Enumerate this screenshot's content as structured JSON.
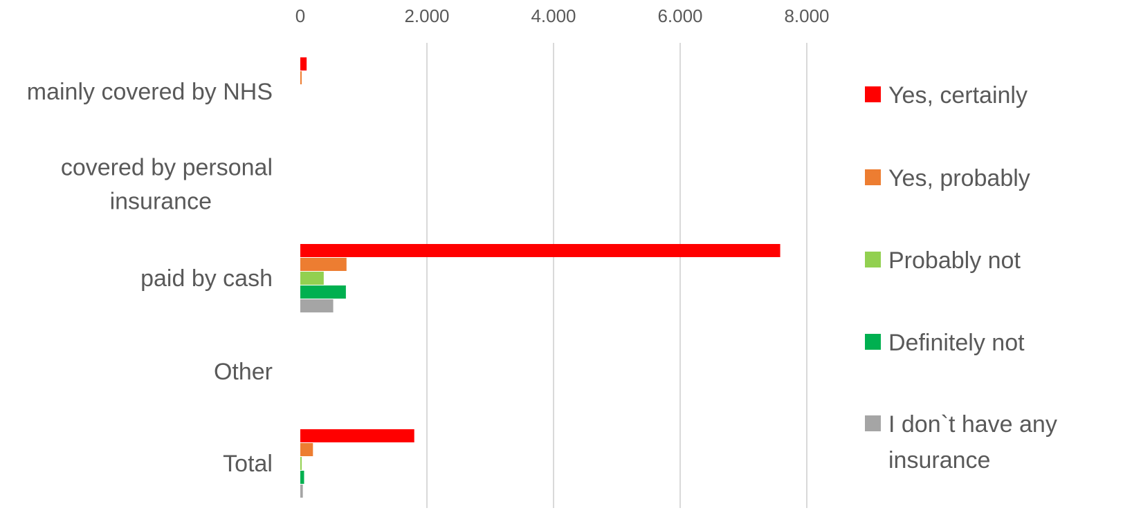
{
  "chart_data": {
    "type": "bar",
    "orientation": "horizontal",
    "categories": [
      [
        "mainly covered by NHS"
      ],
      [
        "covered by personal",
        "insurance"
      ],
      [
        "paid by cash"
      ],
      [
        "Other"
      ],
      [
        "Total"
      ]
    ],
    "series": [
      {
        "name": "Yes, certainly",
        "legend_lines": [
          "Yes, certainly"
        ],
        "color": "#ff0000",
        "values": [
          100,
          0,
          7580,
          0,
          1800
        ]
      },
      {
        "name": "Yes, probably",
        "legend_lines": [
          "Yes, probably"
        ],
        "color": "#ed7d31",
        "values": [
          20,
          0,
          730,
          0,
          200
        ]
      },
      {
        "name": "Probably not",
        "legend_lines": [
          "Probably not"
        ],
        "color": "#92d050",
        "values": [
          0,
          0,
          370,
          0,
          10
        ]
      },
      {
        "name": "Definitely not",
        "legend_lines": [
          "Definitely not"
        ],
        "color": "#00b050",
        "values": [
          0,
          0,
          720,
          0,
          60
        ]
      },
      {
        "name": "I don`t have any insurance",
        "legend_lines": [
          "I don`t have any",
          "insurance"
        ],
        "color": "#a5a5a5",
        "values": [
          0,
          0,
          520,
          0,
          40
        ]
      }
    ],
    "x_ticks": [
      "0",
      "2.000",
      "4.000",
      "6.000",
      "8.000"
    ],
    "x_tick_values": [
      0,
      2000,
      4000,
      6000,
      8000
    ],
    "xlim": [
      0,
      8000
    ],
    "xaxis_position": "top",
    "grid": true,
    "legend_position": "right",
    "title": "",
    "xlabel": "",
    "ylabel": ""
  }
}
